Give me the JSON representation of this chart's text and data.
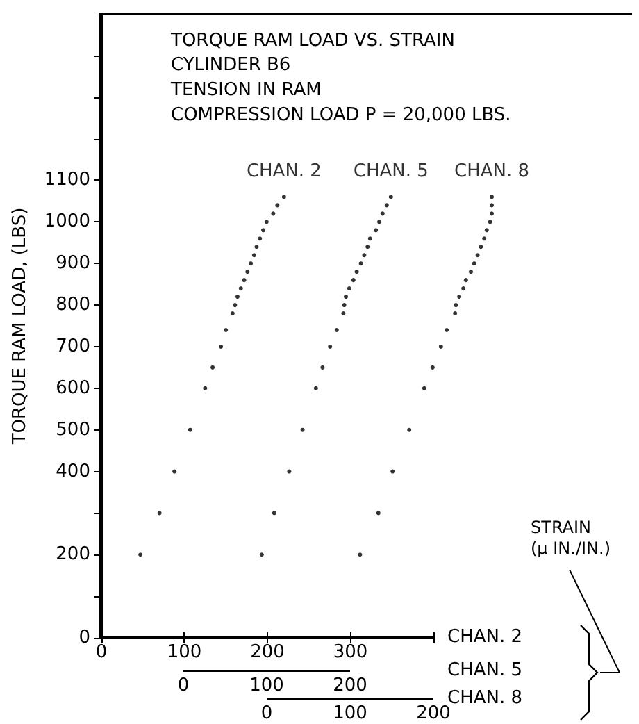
{
  "chart_data": [
    {
      "type": "scatter",
      "title": "TORQUE RAM LOAD VS. STRAIN",
      "subtitle": "CYLINDER B6\nTENSION IN RAM\nCOMPRESSION LOAD P = 20,000 LBS.",
      "xlabel": "CHAN. 2",
      "ylabel": "TORQUE RAM LOAD, (LBS)",
      "annotations": [
        "STRAIN\n(μ IN./IN.)"
      ],
      "xlim": [
        0,
        400
      ],
      "xticks": [
        0,
        100,
        200,
        300,
        {
          "value": 400,
          "label": null
        }
      ],
      "ylim": [
        0,
        1500
      ],
      "yticks": [
        0,
        {
          "value": 100,
          "label": null
        },
        200,
        {
          "value": 300,
          "label": null
        },
        400,
        500,
        600,
        700,
        800,
        900,
        1000,
        1100,
        {
          "value": 1200,
          "label": null
        },
        {
          "value": 1300,
          "label": null
        },
        {
          "value": 1400,
          "label": null
        }
      ],
      "grid": false,
      "marker": "circle",
      "series": [
        {
          "name": "CHAN. 2",
          "color": "#000000",
          "x": [
            47,
            70,
            88,
            107,
            125,
            134,
            144,
            150,
            158,
            161,
            164,
            168,
            172,
            176,
            180,
            184,
            187,
            191,
            195,
            199,
            207,
            212,
            220
          ],
          "values": [
            200,
            300,
            400,
            500,
            600,
            650,
            700,
            740,
            780,
            800,
            820,
            840,
            860,
            880,
            900,
            920,
            940,
            960,
            980,
            1000,
            1020,
            1040,
            1060
          ]
        }
      ]
    },
    {
      "type": "scatter",
      "xlabel": "CHAN. 5",
      "xlim": [
        -100,
        300
      ],
      "xticks": [
        0,
        100,
        200
      ],
      "ylim": [
        0,
        1500
      ],
      "tick_labels": "x",
      "grid": false,
      "marker": "circle",
      "series": [
        {
          "name": "CHAN. 5",
          "color": "#000000",
          "x": [
            94,
            109,
            127,
            143,
            159,
            167,
            176,
            184,
            192,
            193,
            195,
            199,
            204,
            208,
            213,
            217,
            221,
            224,
            231,
            235,
            239,
            244,
            249
          ],
          "values": [
            200,
            300,
            400,
            500,
            600,
            650,
            700,
            740,
            780,
            800,
            820,
            840,
            860,
            880,
            900,
            920,
            940,
            960,
            980,
            1000,
            1020,
            1040,
            1060
          ]
        }
      ]
    },
    {
      "type": "scatter",
      "xlabel": "CHAN. 8",
      "xlim": [
        -200,
        280
      ],
      "xticks": [
        0,
        100,
        200
      ],
      "ylim": [
        0,
        1500
      ],
      "tick_labels": "x",
      "grid": false,
      "marker": "circle",
      "series": [
        {
          "name": "CHAN. 8",
          "color": "#000000",
          "x": [
            112,
            134,
            151,
            171,
            189,
            199,
            209,
            216,
            226,
            227,
            231,
            236,
            239,
            245,
            249,
            253,
            257,
            261,
            264,
            268,
            270,
            270,
            270
          ],
          "values": [
            200,
            300,
            400,
            500,
            600,
            650,
            700,
            740,
            780,
            800,
            820,
            840,
            860,
            880,
            900,
            920,
            940,
            960,
            980,
            1000,
            1020,
            1040,
            1060
          ]
        }
      ]
    }
  ]
}
